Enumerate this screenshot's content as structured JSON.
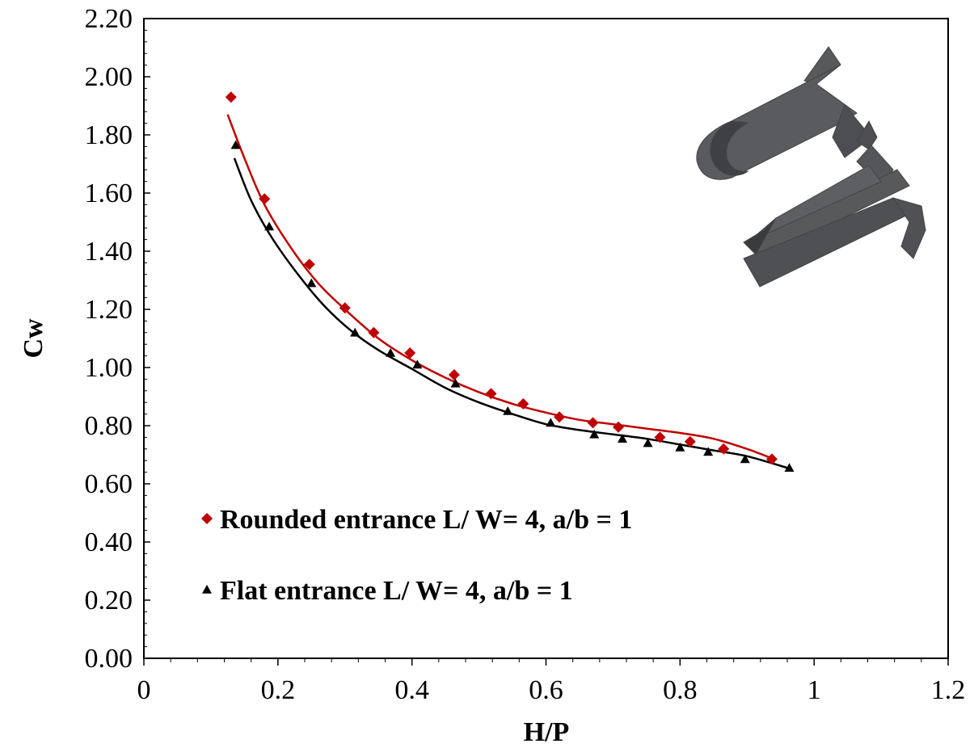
{
  "chart_data": {
    "type": "scatter",
    "title": "",
    "xlabel": "H/P",
    "ylabel": "Cw",
    "xlim": [
      0,
      1.2
    ],
    "ylim": [
      0,
      2.2
    ],
    "x_ticks": [
      "0",
      "0.2",
      "0.4",
      "0.6",
      "0.8",
      "1",
      "1.2"
    ],
    "y_ticks": [
      "0.00",
      "0.20",
      "0.40",
      "0.60",
      "0.80",
      "1.00",
      "1.20",
      "1.40",
      "1.60",
      "1.80",
      "2.00",
      "2.20"
    ],
    "grid": false,
    "legend_position": "bottom-left",
    "series": [
      {
        "name": "Rounded entrance L/ W= 4,  a/b = 1",
        "marker": "diamond",
        "color": "#c00000",
        "points": [
          [
            0.13,
            1.93
          ],
          [
            0.18,
            1.58
          ],
          [
            0.247,
            1.355
          ],
          [
            0.3,
            1.205
          ],
          [
            0.343,
            1.12
          ],
          [
            0.397,
            1.05
          ],
          [
            0.463,
            0.975
          ],
          [
            0.518,
            0.91
          ],
          [
            0.566,
            0.875
          ],
          [
            0.62,
            0.83
          ],
          [
            0.67,
            0.81
          ],
          [
            0.708,
            0.795
          ],
          [
            0.77,
            0.76
          ],
          [
            0.815,
            0.745
          ],
          [
            0.865,
            0.72
          ],
          [
            0.937,
            0.685
          ]
        ],
        "trend": [
          [
            0.125,
            1.87
          ],
          [
            0.15,
            1.72
          ],
          [
            0.18,
            1.56
          ],
          [
            0.22,
            1.41
          ],
          [
            0.26,
            1.29
          ],
          [
            0.3,
            1.2
          ],
          [
            0.35,
            1.1
          ],
          [
            0.4,
            1.025
          ],
          [
            0.45,
            0.965
          ],
          [
            0.5,
            0.915
          ],
          [
            0.55,
            0.875
          ],
          [
            0.6,
            0.845
          ],
          [
            0.65,
            0.82
          ],
          [
            0.7,
            0.805
          ],
          [
            0.75,
            0.79
          ],
          [
            0.8,
            0.775
          ],
          [
            0.85,
            0.755
          ],
          [
            0.9,
            0.72
          ],
          [
            0.94,
            0.685
          ]
        ]
      },
      {
        "name": "Flat entrance L/ W= 4,  a/b = 1",
        "marker": "triangle",
        "color": "#000000",
        "points": [
          [
            0.137,
            1.765
          ],
          [
            0.187,
            1.485
          ],
          [
            0.25,
            1.29
          ],
          [
            0.315,
            1.12
          ],
          [
            0.368,
            1.05
          ],
          [
            0.408,
            1.01
          ],
          [
            0.465,
            0.945
          ],
          [
            0.543,
            0.85
          ],
          [
            0.607,
            0.81
          ],
          [
            0.672,
            0.77
          ],
          [
            0.714,
            0.755
          ],
          [
            0.752,
            0.74
          ],
          [
            0.8,
            0.725
          ],
          [
            0.842,
            0.71
          ],
          [
            0.897,
            0.685
          ],
          [
            0.963,
            0.655
          ]
        ],
        "trend": [
          [
            0.135,
            1.72
          ],
          [
            0.16,
            1.575
          ],
          [
            0.19,
            1.45
          ],
          [
            0.23,
            1.32
          ],
          [
            0.27,
            1.21
          ],
          [
            0.31,
            1.125
          ],
          [
            0.35,
            1.06
          ],
          [
            0.4,
            0.995
          ],
          [
            0.45,
            0.93
          ],
          [
            0.5,
            0.88
          ],
          [
            0.55,
            0.84
          ],
          [
            0.6,
            0.805
          ],
          [
            0.65,
            0.785
          ],
          [
            0.7,
            0.77
          ],
          [
            0.75,
            0.755
          ],
          [
            0.8,
            0.735
          ],
          [
            0.85,
            0.715
          ],
          [
            0.9,
            0.695
          ],
          [
            0.96,
            0.655
          ]
        ]
      }
    ]
  },
  "logo_icon": "folded-channel-logo"
}
